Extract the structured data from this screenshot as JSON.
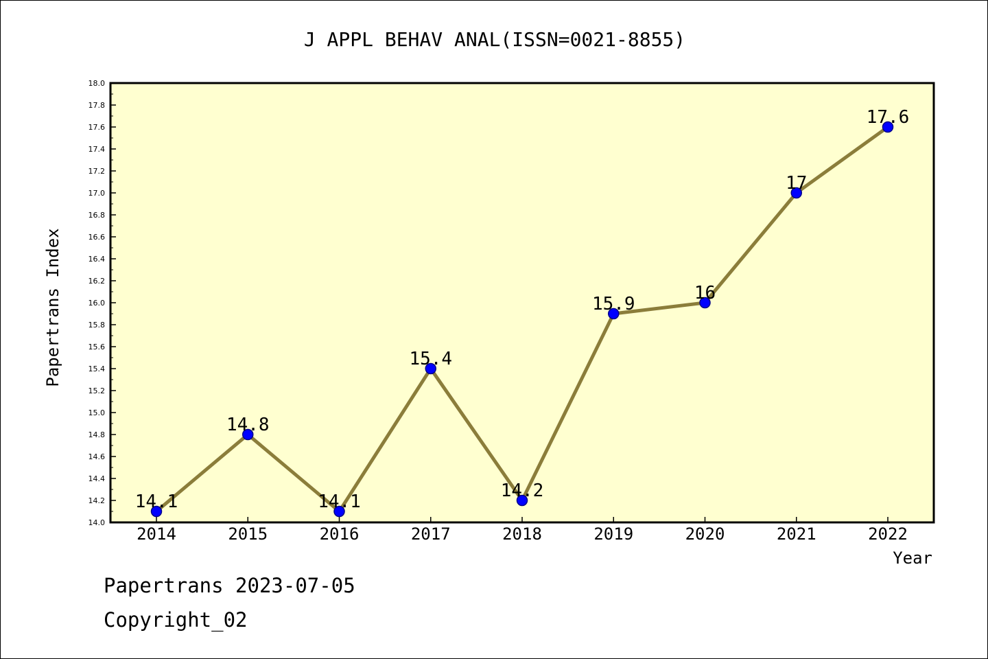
{
  "chart_data": {
    "type": "line",
    "title": "J APPL BEHAV ANAL(ISSN=0021-8855)",
    "xlabel": "Year",
    "ylabel": "Papertrans Index",
    "categories": [
      "2014",
      "2015",
      "2016",
      "2017",
      "2018",
      "2019",
      "2020",
      "2021",
      "2022"
    ],
    "values": [
      14.1,
      14.8,
      14.1,
      15.4,
      14.2,
      15.9,
      16,
      17,
      17.6
    ],
    "data_labels": [
      "14.1",
      "14.8",
      "14.1",
      "15.4",
      "14.2",
      "15.9",
      "16",
      "17",
      "17.6"
    ],
    "ylim": [
      14.0,
      18.0
    ],
    "yticks": [
      "14.0",
      "14.2",
      "14.4",
      "14.6",
      "14.8",
      "15.0",
      "15.2",
      "15.4",
      "15.6",
      "15.8",
      "16.0",
      "16.2",
      "16.4",
      "16.6",
      "16.8",
      "17.0",
      "17.2",
      "17.4",
      "17.6",
      "17.8",
      "18.0"
    ],
    "grid": false,
    "colors": {
      "plot_background": "#ffffd0",
      "line": "#8b7d3a",
      "marker": "#0000ff",
      "marker_edge": "#00008b"
    }
  },
  "footer": {
    "date_line": "Papertrans 2023-07-05",
    "copyright": "Copyright_02"
  }
}
